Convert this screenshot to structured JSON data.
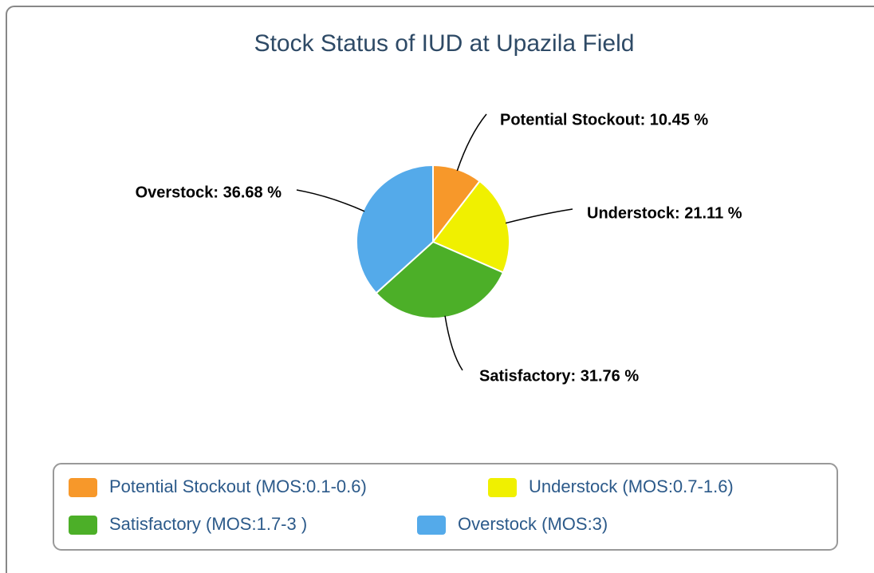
{
  "chart_data": {
    "type": "pie",
    "title": "Stock Status of IUD at Upazila Field",
    "categories": [
      "Potential Stockout (MOS:0.1-0.6)",
      "Understock (MOS:0.7-1.6)",
      "Satisfactory (MOS:1.7-3 )",
      "Overstock (MOS:3)"
    ],
    "values": [
      10.45,
      21.11,
      31.76,
      36.68
    ],
    "value_labels": [
      "Potential Stockout: 10.45 %",
      "Understock: 21.11 %",
      "Satisfactory: 31.76 %",
      "Overstock: 36.68 %"
    ],
    "colors": [
      "#f7982a",
      "#f0f000",
      "#4caf28",
      "#54aaea"
    ],
    "legend": "bottom"
  }
}
